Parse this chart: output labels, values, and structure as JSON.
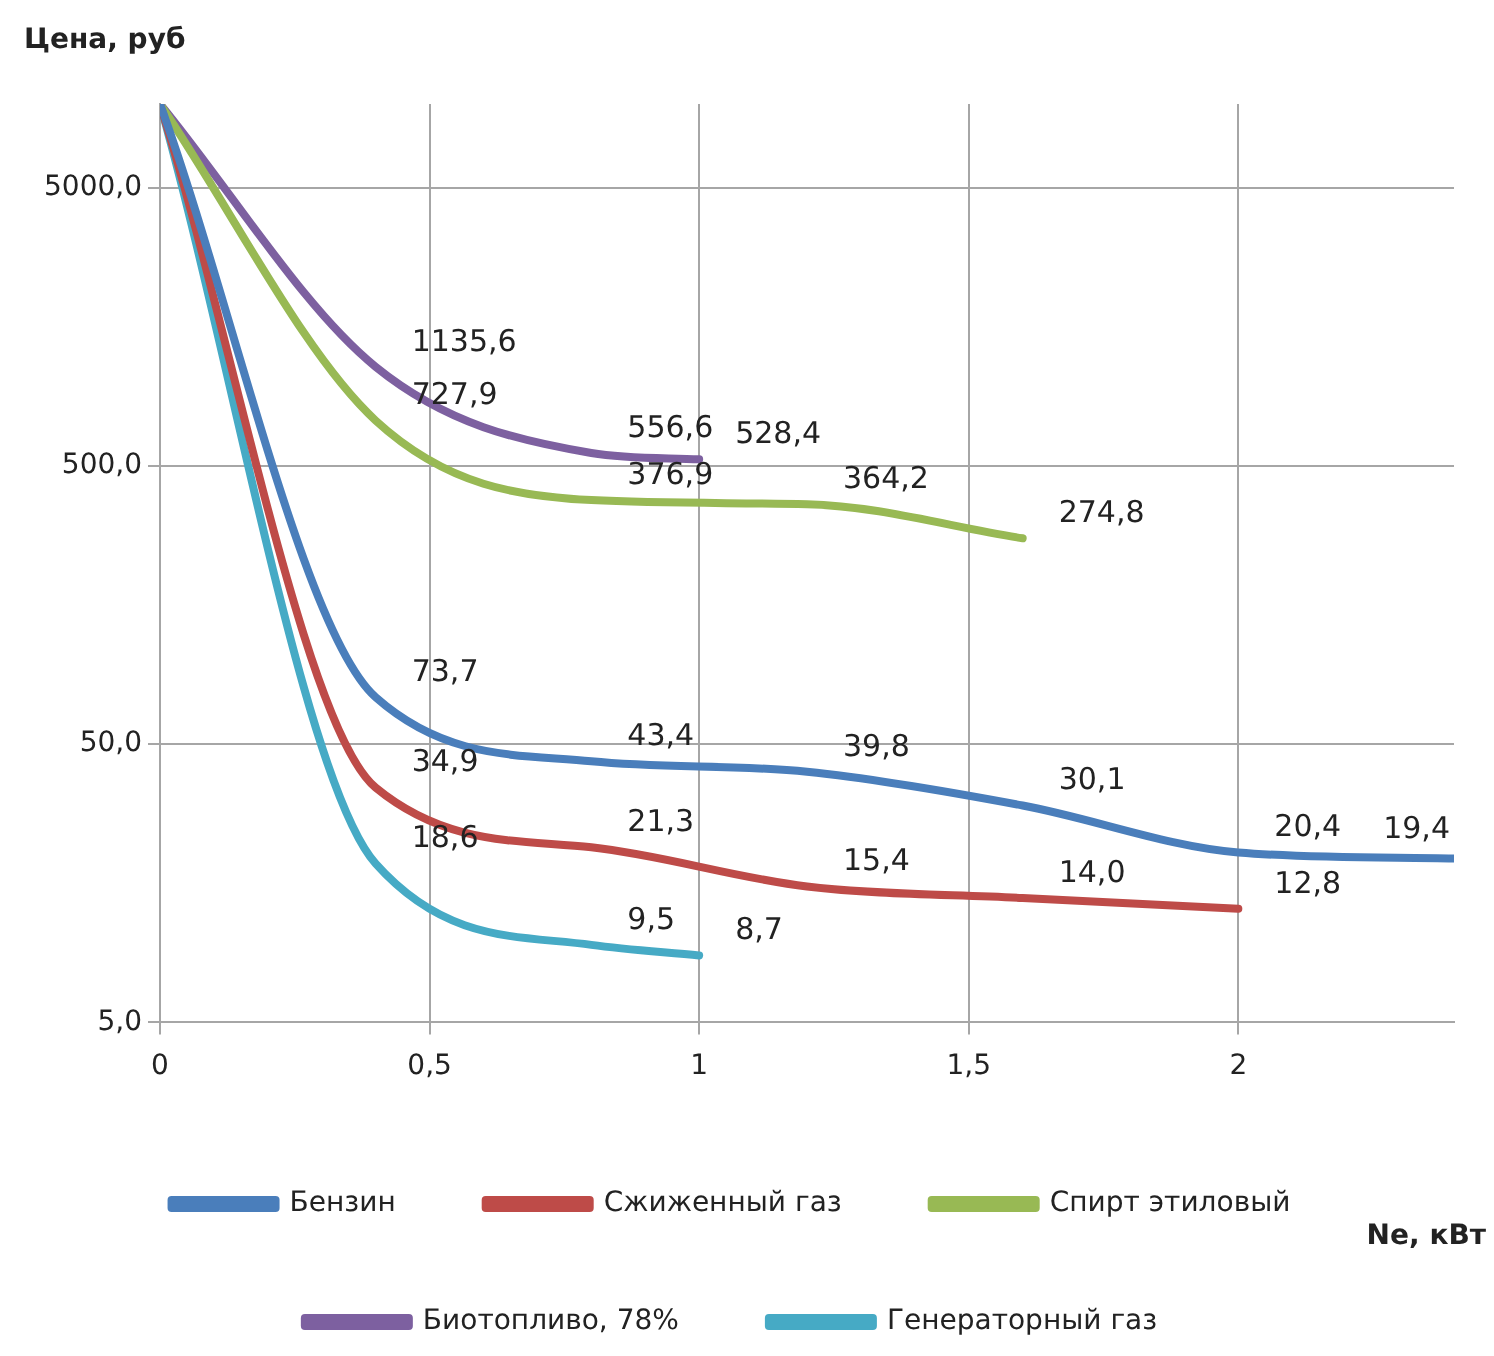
{
  "chart_data": {
    "type": "line",
    "ylabel": "Цена, руб",
    "xlabel": "Ne, кВт",
    "xlim": [
      0,
      2.4
    ],
    "xticks": [
      0,
      {
        "value": 0.5,
        "label": "0,5"
      },
      1,
      {
        "value": 1.5,
        "label": "1,5"
      },
      2
    ],
    "ylim": [
      5,
      10000
    ],
    "yticks": [
      {
        "value": 5,
        "label": "5,0"
      },
      {
        "value": 50,
        "label": "50,0"
      },
      {
        "value": 500,
        "label": "500,0"
      },
      {
        "value": 5000,
        "label": "5000,0"
      }
    ],
    "log": "y",
    "grid": true,
    "legend": "bottom",
    "marker": "none",
    "line_style": "solid",
    "series": [
      {
        "name": "Бензин",
        "color": "#4a7ebb",
        "x": [
          0,
          0.4,
          0.8,
          1.2,
          1.6,
          2.0,
          2.4
        ],
        "values": [
          10000,
          73.7,
          43.4,
          39.8,
          30.1,
          20.4,
          19.4
        ],
        "value_labels": [
          null,
          "73,7",
          "43,4",
          "39,8",
          "30,1",
          "20,4",
          "19,4"
        ]
      },
      {
        "name": "Сжиженный газ",
        "color": "#be4b48",
        "x": [
          0,
          0.4,
          0.8,
          1.2,
          1.6,
          2.0
        ],
        "values": [
          10000,
          34.9,
          21.3,
          15.4,
          14.0,
          12.8
        ],
        "value_labels": [
          null,
          "34,9",
          "21,3",
          "15,4",
          "14,0",
          "12,8"
        ]
      },
      {
        "name": "Спирт этиловый",
        "color": "#98b954",
        "x": [
          0,
          0.4,
          0.8,
          1.2,
          1.6
        ],
        "values": [
          10000,
          727.9,
          376.9,
          364.2,
          274.8
        ],
        "value_labels": [
          null,
          "727,9",
          "376,9",
          "364,2",
          "274,8"
        ]
      },
      {
        "name": "Биотопливо, 78%",
        "color": "#7d60a0",
        "x": [
          0,
          0.4,
          0.8,
          1.0
        ],
        "values": [
          10000,
          1135.6,
          556.6,
          528.4
        ],
        "value_labels": [
          null,
          "1135,6",
          "556,6",
          "528,4"
        ]
      },
      {
        "name": "Генераторный газ",
        "color": "#46aac5",
        "x": [
          0,
          0.4,
          0.8,
          1.0
        ],
        "values": [
          10000,
          18.6,
          9.5,
          8.7
        ],
        "value_labels": [
          null,
          "18,6",
          "9,5",
          "8,7"
        ]
      }
    ]
  }
}
